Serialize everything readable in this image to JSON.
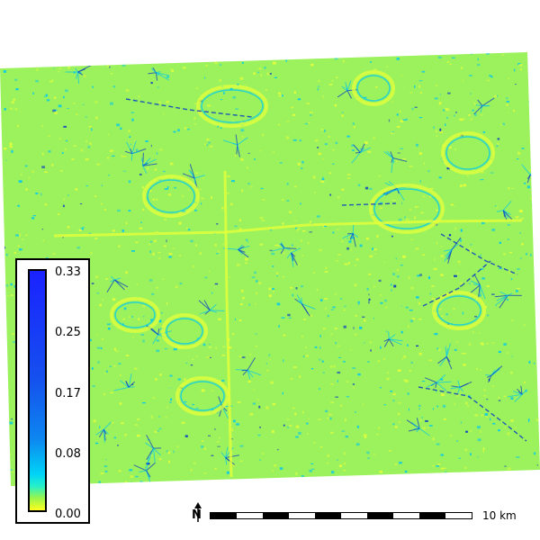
{
  "map": {
    "legend": {
      "ticks": [
        "0.33",
        "0.25",
        "0.17",
        "0.08",
        "0.00"
      ],
      "colors": [
        "#1a22ff",
        "#1550ee",
        "#0d86f0",
        "#00d4f6",
        "#9cf54a",
        "#ffff1e"
      ]
    },
    "scalebar": {
      "label": "10 km",
      "segments": 10
    },
    "north_arrow": {
      "letter": "N",
      "icon": "north-arrow-icon"
    },
    "raster_colors": {
      "base": "#9cf25c",
      "low": "#e6ff3a",
      "high": "#00c8f0",
      "max": "#0033cc"
    }
  }
}
